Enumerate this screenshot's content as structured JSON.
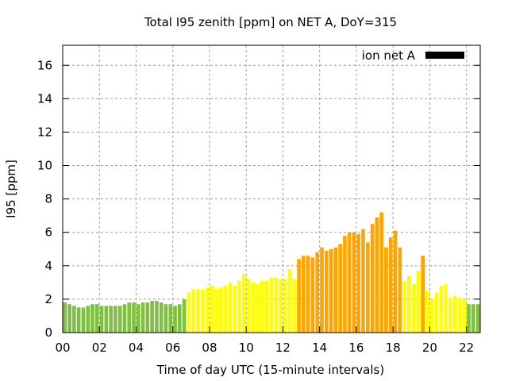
{
  "chart_data": {
    "type": "bar",
    "title": "Total I95 zenith [ppm] on NET A, DoY=315",
    "xlabel": "Time of day UTC (15-minute intervals)",
    "ylabel": "I95 [ppm]",
    "xlim": [
      0,
      22.75
    ],
    "ylim": [
      0,
      17.2
    ],
    "grid": true,
    "legend": {
      "label": "ion net A",
      "placement": "top-right",
      "color": "#000000"
    },
    "x_ticks": [
      "00",
      "02",
      "04",
      "06",
      "08",
      "10",
      "12",
      "14",
      "16",
      "18",
      "20",
      "22"
    ],
    "y_ticks": [
      "0",
      "2",
      "4",
      "6",
      "8",
      "10",
      "12",
      "14",
      "16"
    ],
    "interval_hours": 0.25,
    "colors": {
      "low": "#80c040",
      "mid": "#ffff00",
      "high": "#ffa500"
    },
    "values": [
      1.8,
      1.7,
      1.6,
      1.5,
      1.5,
      1.6,
      1.7,
      1.7,
      1.6,
      1.6,
      1.6,
      1.6,
      1.6,
      1.7,
      1.8,
      1.8,
      1.7,
      1.8,
      1.8,
      1.9,
      1.9,
      1.8,
      1.7,
      1.7,
      1.6,
      1.7,
      2.0,
      2.4,
      2.6,
      2.6,
      2.6,
      2.7,
      2.8,
      2.6,
      2.7,
      2.8,
      3.0,
      2.8,
      3.1,
      3.5,
      3.2,
      3.0,
      2.9,
      3.1,
      3.1,
      3.3,
      3.3,
      3.2,
      3.2,
      3.8,
      3.2,
      4.4,
      4.6,
      4.6,
      4.5,
      4.8,
      5.1,
      4.9,
      5.0,
      5.1,
      5.3,
      5.8,
      6.0,
      6.0,
      5.9,
      6.2,
      5.4,
      6.5,
      6.9,
      7.2,
      5.1,
      5.7,
      6.1,
      5.1,
      3.1,
      3.4,
      2.9,
      3.7,
      4.6,
      2.5,
      2.0,
      2.4,
      2.8,
      2.9,
      2.1,
      2.2,
      2.1,
      2.0,
      1.7,
      1.7,
      1.7
    ],
    "levels": [
      "low",
      "low",
      "low",
      "low",
      "low",
      "low",
      "low",
      "low",
      "low",
      "low",
      "low",
      "low",
      "low",
      "low",
      "low",
      "low",
      "low",
      "low",
      "low",
      "low",
      "low",
      "low",
      "low",
      "low",
      "low",
      "low",
      "low",
      "mid",
      "mid",
      "mid",
      "mid",
      "mid",
      "mid",
      "mid",
      "mid",
      "mid",
      "mid",
      "mid",
      "mid",
      "mid",
      "mid",
      "mid",
      "mid",
      "mid",
      "mid",
      "mid",
      "mid",
      "mid",
      "mid",
      "mid",
      "mid",
      "high",
      "high",
      "high",
      "high",
      "high",
      "high",
      "high",
      "high",
      "high",
      "high",
      "high",
      "high",
      "high",
      "high",
      "high",
      "high",
      "high",
      "high",
      "high",
      "high",
      "high",
      "high",
      "high",
      "mid",
      "mid",
      "mid",
      "mid",
      "high",
      "mid",
      "mid",
      "mid",
      "mid",
      "mid",
      "mid",
      "mid",
      "mid",
      "mid",
      "low",
      "low",
      "low"
    ]
  }
}
